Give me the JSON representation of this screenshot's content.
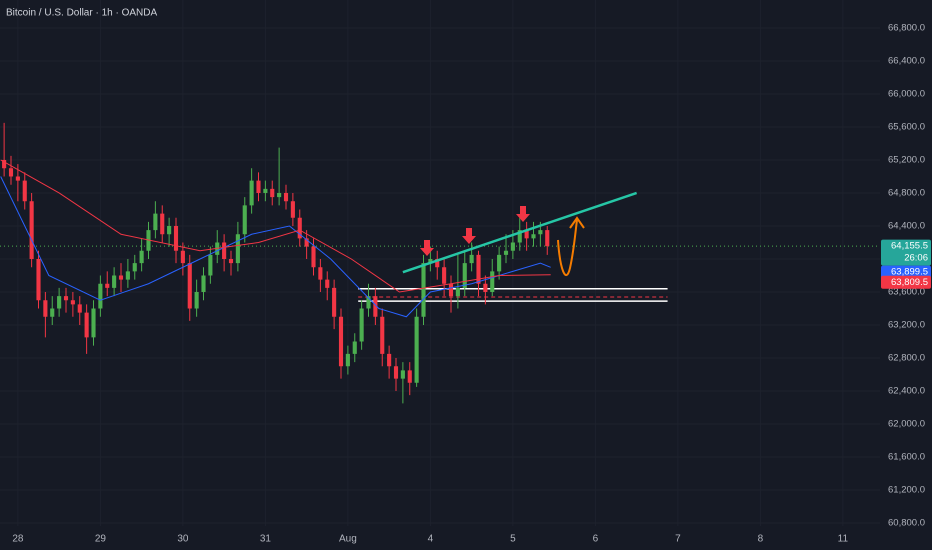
{
  "chart_data": {
    "type": "candlestick",
    "title": "Bitcoin / U.S. Dollar · 1h · OANDA",
    "up_color": "#4caf50",
    "down_color": "#f23645",
    "x": [
      -4,
      -2,
      0,
      2,
      4,
      6,
      8,
      10,
      12,
      14,
      16,
      18,
      20,
      22,
      24,
      26,
      28,
      30,
      32,
      34,
      36,
      38,
      40,
      42,
      44,
      46,
      48,
      50,
      52,
      54,
      56,
      58,
      60,
      62,
      64,
      66,
      68,
      70,
      72,
      74,
      76,
      78,
      80,
      82,
      84,
      86,
      88,
      90,
      92,
      94,
      96,
      98,
      100,
      102,
      104,
      106,
      108,
      110,
      112,
      114,
      116,
      118,
      120,
      122,
      124,
      126,
      128,
      130,
      132,
      134,
      136,
      138,
      140,
      142,
      144,
      146,
      148,
      150,
      152,
      154
    ],
    "open": [
      65200,
      65100,
      65000,
      64950,
      64700,
      64000,
      63500,
      63300,
      63400,
      63550,
      63500,
      63450,
      63350,
      63050,
      63400,
      63700,
      63650,
      63800,
      63750,
      63850,
      63950,
      64100,
      64350,
      64550,
      64300,
      64400,
      64100,
      63950,
      63400,
      63600,
      63800,
      64050,
      64200,
      64000,
      63950,
      64300,
      64650,
      64950,
      64800,
      64850,
      64750,
      64800,
      64700,
      64500,
      64250,
      64150,
      63900,
      63750,
      63650,
      63300,
      62700,
      62850,
      63000,
      63400,
      63550,
      63300,
      62850,
      62700,
      62550,
      62650,
      62500,
      63300,
      63950,
      64000,
      63900,
      63700,
      63550,
      63650,
      63950,
      64050,
      63700,
      63600,
      63850,
      64050,
      64100,
      64200,
      64350,
      64250,
      64300,
      64350
    ],
    "high": [
      65650,
      65250,
      65150,
      65050,
      64800,
      64100,
      63600,
      63550,
      63650,
      63650,
      63600,
      63550,
      63450,
      63500,
      63800,
      63850,
      63900,
      63950,
      64000,
      64050,
      64250,
      64450,
      64700,
      64650,
      64500,
      64500,
      64200,
      64050,
      63750,
      63900,
      64150,
      64350,
      64300,
      64100,
      64450,
      64750,
      65100,
      65050,
      64950,
      64950,
      65350,
      64900,
      64800,
      64600,
      64350,
      64250,
      64000,
      63850,
      63750,
      63400,
      62950,
      63100,
      63500,
      63700,
      63650,
      63400,
      62950,
      62800,
      62750,
      62750,
      63400,
      64050,
      64150,
      64100,
      64000,
      63800,
      64050,
      64100,
      64200,
      64100,
      63800,
      64000,
      64150,
      64300,
      64350,
      64500,
      64450,
      64450,
      64450,
      64400
    ],
    "low": [
      65000,
      64900,
      64700,
      64600,
      63900,
      63400,
      63050,
      63200,
      63300,
      63350,
      63300,
      63200,
      62850,
      62950,
      63300,
      63550,
      63550,
      63600,
      63650,
      63750,
      63850,
      64000,
      64250,
      64200,
      64150,
      63950,
      63800,
      63250,
      63300,
      63500,
      63700,
      63950,
      63850,
      63800,
      63850,
      64200,
      64550,
      64700,
      64700,
      64650,
      64650,
      64600,
      64400,
      64150,
      64000,
      63800,
      63600,
      63500,
      63150,
      62550,
      62600,
      62750,
      62900,
      63300,
      63200,
      62700,
      62550,
      62400,
      62250,
      62350,
      62450,
      63200,
      63850,
      63750,
      63550,
      63350,
      63400,
      63550,
      63850,
      63550,
      63450,
      63550,
      63750,
      63950,
      64000,
      64100,
      64100,
      64150,
      64150,
      64050
    ],
    "close": [
      65100,
      65000,
      64950,
      64700,
      64000,
      63500,
      63300,
      63400,
      63550,
      63500,
      63450,
      63350,
      63050,
      63400,
      63700,
      63650,
      63800,
      63750,
      63850,
      63950,
      64100,
      64350,
      64550,
      64300,
      64400,
      64100,
      63950,
      63400,
      63600,
      63800,
      64050,
      64200,
      64000,
      63950,
      64300,
      64650,
      64950,
      64800,
      64850,
      64750,
      64800,
      64700,
      64500,
      64250,
      64150,
      63900,
      63750,
      63650,
      63300,
      62700,
      62850,
      63000,
      63400,
      63550,
      63300,
      62850,
      62700,
      62550,
      62650,
      62500,
      63300,
      63950,
      64000,
      63900,
      63700,
      63550,
      63650,
      63950,
      64050,
      63700,
      63600,
      63850,
      64050,
      64100,
      64200,
      64350,
      64250,
      64300,
      64350,
      64155.5
    ],
    "lines": [
      {
        "color": "#2962ff",
        "x": [
          -5,
          9,
          24,
          38,
          53,
          68,
          79,
          91,
          105,
          113,
          120,
          132,
          140,
          152,
          155
        ],
        "values": [
          65000,
          63800,
          63500,
          63700,
          64000,
          64300,
          64400,
          64000,
          63400,
          63300,
          63600,
          63700,
          63800,
          63950,
          63899.5
        ]
      },
      {
        "color": "#f23645",
        "x": [
          -5,
          12,
          30,
          53,
          70,
          82,
          97,
          111,
          126,
          140,
          155
        ],
        "values": [
          65200,
          64800,
          64300,
          64100,
          64200,
          64350,
          64000,
          63600,
          63700,
          63800,
          63809.5
        ]
      }
    ],
    "trendline": {
      "color": "#26c6a6",
      "x": [
        112,
        180
      ],
      "values": [
        63840,
        64800
      ]
    },
    "zone": {
      "x": [
        99,
        189
      ],
      "values": [
        63640,
        63490
      ],
      "dashed": 63540
    },
    "xlim": [
      -5.2,
      250.8
    ],
    "xticks": [
      {
        "value": 0,
        "label": "28"
      },
      {
        "value": 24,
        "label": "29"
      },
      {
        "value": 48,
        "label": "30"
      },
      {
        "value": 72,
        "label": "31"
      },
      {
        "value": 96,
        "label": "Aug"
      },
      {
        "value": 120,
        "label": "4"
      },
      {
        "value": 144,
        "label": "5"
      },
      {
        "value": 168,
        "label": "6"
      },
      {
        "value": 192,
        "label": "7"
      },
      {
        "value": 216,
        "label": "8"
      },
      {
        "value": 240,
        "label": "11"
      }
    ],
    "ylim": [
      60473,
      67139
    ],
    "yticks": [
      {
        "value": 60800,
        "label": "60,800.0"
      },
      {
        "value": 61200,
        "label": "61,200.0"
      },
      {
        "value": 61600,
        "label": "61,600.0"
      },
      {
        "value": 62000,
        "label": "62,000.0"
      },
      {
        "value": 62400,
        "label": "62,400.0"
      },
      {
        "value": 62800,
        "label": "62,800.0"
      },
      {
        "value": 63200,
        "label": "63,200.0"
      },
      {
        "value": 63600,
        "label": "63,600.0"
      },
      {
        "value": 64000,
        "label": "64,000.0"
      },
      {
        "value": 64400,
        "label": "64,400.0"
      },
      {
        "value": 64800,
        "label": "64,800.0"
      },
      {
        "value": 65200,
        "label": "65,200.0"
      },
      {
        "value": 65600,
        "label": "65,600.0"
      },
      {
        "value": 66000,
        "label": "66,000.0"
      },
      {
        "value": 66400,
        "label": "66,400.0"
      },
      {
        "value": 66800,
        "label": "66,800.0"
      }
    ],
    "grid": true,
    "price_tags": [
      {
        "value": 64155.5,
        "label": "64,155.5",
        "color": "#26a69a"
      },
      {
        "value": 63899.5,
        "label": "63,899.5",
        "color": "#2962ff"
      },
      {
        "value": 63809.5,
        "label": "63,809.5",
        "color": "#f23645"
      }
    ],
    "countdown": "26:06"
  }
}
